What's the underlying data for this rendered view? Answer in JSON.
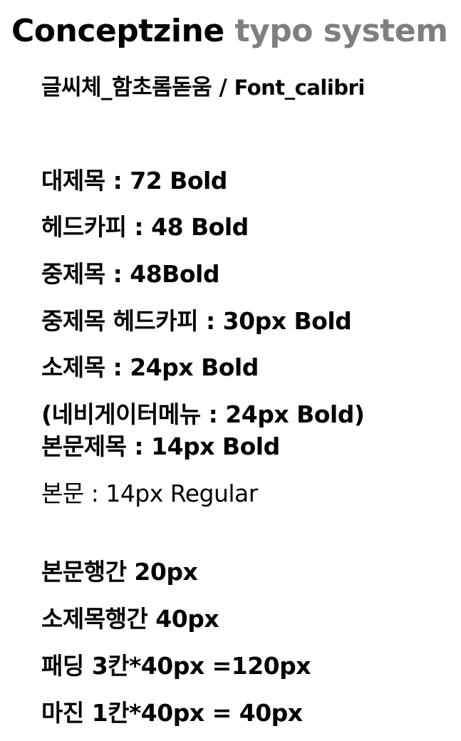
{
  "title": {
    "black": "Conceptzine",
    "gray": "typo system"
  },
  "font_line": {
    "main": "글씨체_함초롬돋움 / ",
    "sub": "Font_calibri"
  },
  "specs": [
    "대제목 : 72 Bold",
    "헤드카피 : 48 Bold",
    "중제목 : 48Bold",
    "중제목 헤드카피 : 30px Bold",
    "소제목 : 24px Bold",
    "(네비게이터메뉴 : 24px Bold)",
    "본문제목 : 14px Bold",
    "본문 : 14px Regular"
  ],
  "spacing": [
    "본문행간 20px",
    "소제목행간 40px",
    "패딩 3칸*40px =120px",
    "마진 1칸*40px = 40px"
  ]
}
